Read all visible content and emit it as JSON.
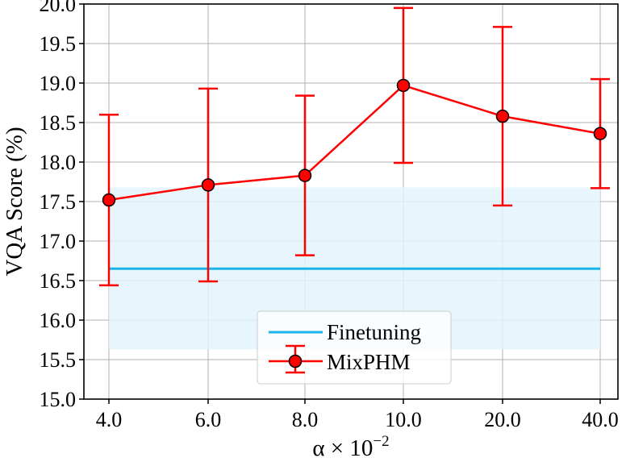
{
  "chart_data": {
    "type": "line",
    "categories": [
      "4.0",
      "6.0",
      "8.0",
      "10.0",
      "20.0",
      "40.0"
    ],
    "xlabel": "α × 10",
    "xlabel_exponent": "−2",
    "ylabel": "VQA Score (%)",
    "ylim": [
      15.0,
      20.0
    ],
    "yticks": [
      "15.0",
      "15.5",
      "16.0",
      "16.5",
      "17.0",
      "17.5",
      "18.0",
      "18.5",
      "19.0",
      "19.5",
      "20.0"
    ],
    "grid": true,
    "legend_position": "bottom-center",
    "series": [
      {
        "name": "MixPHM",
        "color": "#ff0000",
        "values": [
          17.52,
          17.71,
          17.83,
          18.97,
          18.58,
          18.36
        ],
        "error_low": [
          16.44,
          16.49,
          16.82,
          17.99,
          17.45,
          17.67
        ],
        "error_high": [
          18.6,
          18.93,
          18.84,
          19.95,
          19.71,
          19.05
        ]
      }
    ],
    "baseline": {
      "name": "Finetuning",
      "color": "#1ab5e8",
      "band_color": "#e3f4fb",
      "value": 16.65,
      "band": [
        15.63,
        17.68
      ]
    }
  }
}
